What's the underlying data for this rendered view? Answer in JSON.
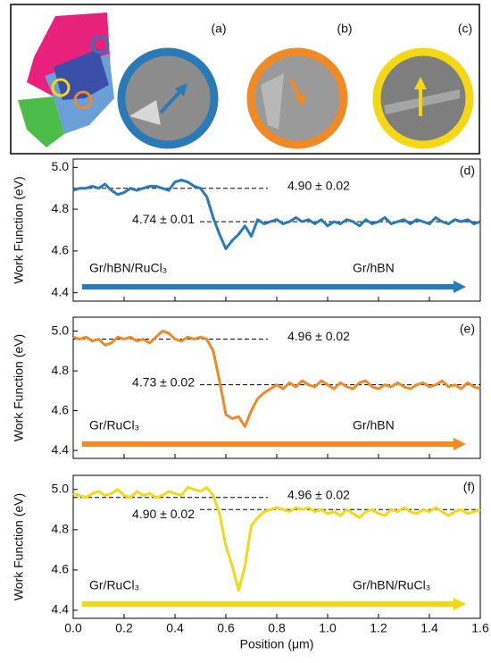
{
  "image_panel": {
    "labels": [
      "(a)",
      "(b)",
      "(c)"
    ]
  },
  "chart_data": [
    {
      "type": "line",
      "tag": "(d)",
      "ylabel": "Work Function (eV)",
      "color": "#2a7ab8",
      "ylim": [
        4.36,
        5.04
      ],
      "yticks": [
        4.4,
        4.6,
        4.8,
        {
          "value": 5,
          "label": "5.0"
        }
      ],
      "xlim": [
        0,
        1.6
      ],
      "xticks": [
        {
          "value": 0,
          "label": "0.0"
        },
        0.2,
        0.4,
        0.6,
        0.8,
        {
          "value": 1,
          "label": "1.0"
        },
        1.2,
        1.4,
        1.6
      ],
      "annotations": [
        {
          "text": "4.90 ± 0.02",
          "value": 4.9
        },
        {
          "text": "4.74 ± 0.01",
          "value": 4.74
        }
      ],
      "regions": [
        "Gr/hBN/RuCl₃",
        "Gr/hBN"
      ],
      "x": [
        0,
        0.025,
        0.05,
        0.075,
        0.1,
        0.125,
        0.15,
        0.175,
        0.2,
        0.225,
        0.25,
        0.275,
        0.3,
        0.325,
        0.35,
        0.375,
        0.4,
        0.425,
        0.45,
        0.475,
        0.5,
        0.525,
        0.55,
        0.575,
        0.6,
        0.625,
        0.65,
        0.675,
        0.7,
        0.725,
        0.75,
        0.775,
        0.8,
        0.825,
        0.85,
        0.875,
        0.9,
        0.925,
        0.95,
        0.975,
        1,
        1.025,
        1.05,
        1.075,
        1.1,
        1.125,
        1.15,
        1.175,
        1.2,
        1.225,
        1.25,
        1.275,
        1.3,
        1.325,
        1.35,
        1.375,
        1.4,
        1.425,
        1.45,
        1.475,
        1.5,
        1.525,
        1.55,
        1.575,
        1.6
      ],
      "values": [
        4.89,
        4.9,
        4.9,
        4.91,
        4.9,
        4.92,
        4.89,
        4.87,
        4.88,
        4.9,
        4.89,
        4.9,
        4.91,
        4.91,
        4.9,
        4.89,
        4.93,
        4.94,
        4.93,
        4.91,
        4.9,
        4.86,
        4.76,
        4.68,
        4.61,
        4.65,
        4.68,
        4.72,
        4.67,
        4.75,
        4.73,
        4.74,
        4.75,
        4.73,
        4.74,
        4.76,
        4.74,
        4.75,
        4.73,
        4.75,
        4.72,
        4.74,
        4.73,
        4.75,
        4.74,
        4.72,
        4.75,
        4.73,
        4.74,
        4.76,
        4.73,
        4.74,
        4.75,
        4.73,
        4.75,
        4.74,
        4.73,
        4.76,
        4.74,
        4.73,
        4.75,
        4.74,
        4.75,
        4.73,
        4.74
      ]
    },
    {
      "type": "line",
      "tag": "(e)",
      "ylabel": "Work Function (eV)",
      "color": "#f08a24",
      "ylim": [
        4.36,
        5.07
      ],
      "yticks": [
        4.4,
        4.6,
        4.8,
        {
          "value": 5,
          "label": "5.0"
        }
      ],
      "xlim": [
        0,
        1.6
      ],
      "xticks": [
        {
          "value": 0,
          "label": "0.0"
        },
        0.2,
        0.4,
        0.6,
        0.8,
        {
          "value": 1,
          "label": "1.0"
        },
        1.2,
        1.4,
        1.6
      ],
      "annotations": [
        {
          "text": "4.96 ± 0.02",
          "value": 4.96
        },
        {
          "text": "4.73 ± 0.02",
          "value": 4.73
        }
      ],
      "regions": [
        "Gr/RuCl₃",
        "Gr/hBN"
      ],
      "x": [
        0,
        0.025,
        0.05,
        0.075,
        0.1,
        0.125,
        0.15,
        0.175,
        0.2,
        0.225,
        0.25,
        0.275,
        0.3,
        0.325,
        0.35,
        0.375,
        0.4,
        0.425,
        0.45,
        0.475,
        0.5,
        0.525,
        0.55,
        0.575,
        0.6,
        0.625,
        0.65,
        0.675,
        0.7,
        0.725,
        0.75,
        0.775,
        0.8,
        0.825,
        0.85,
        0.875,
        0.9,
        0.925,
        0.95,
        0.975,
        1,
        1.025,
        1.05,
        1.075,
        1.1,
        1.125,
        1.15,
        1.175,
        1.2,
        1.225,
        1.25,
        1.275,
        1.3,
        1.325,
        1.35,
        1.375,
        1.4,
        1.425,
        1.45,
        1.475,
        1.5,
        1.525,
        1.55,
        1.575,
        1.6
      ],
      "values": [
        4.97,
        4.96,
        4.97,
        4.95,
        4.96,
        4.93,
        4.94,
        4.97,
        4.96,
        4.97,
        4.95,
        4.96,
        4.94,
        4.97,
        5.0,
        4.99,
        4.96,
        4.95,
        4.97,
        4.96,
        4.97,
        4.96,
        4.9,
        4.75,
        4.58,
        4.56,
        4.57,
        4.52,
        4.6,
        4.66,
        4.69,
        4.71,
        4.73,
        4.71,
        4.74,
        4.72,
        4.75,
        4.73,
        4.72,
        4.75,
        4.73,
        4.71,
        4.74,
        4.72,
        4.71,
        4.74,
        4.75,
        4.72,
        4.71,
        4.73,
        4.72,
        4.74,
        4.72,
        4.71,
        4.73,
        4.74,
        4.72,
        4.73,
        4.75,
        4.72,
        4.73,
        4.71,
        4.74,
        4.72,
        4.71
      ]
    },
    {
      "type": "line",
      "tag": "(f)",
      "ylabel": "Work Function (eV)",
      "color": "#f5d815",
      "ylim": [
        4.36,
        5.07
      ],
      "yticks": [
        4.4,
        4.6,
        4.8,
        {
          "value": 5,
          "label": "5.0"
        }
      ],
      "xlim": [
        0,
        1.6
      ],
      "xticks": [
        {
          "value": 0,
          "label": "0.0"
        },
        0.2,
        0.4,
        0.6,
        0.8,
        {
          "value": 1,
          "label": "1.0"
        },
        1.2,
        1.4,
        1.6
      ],
      "xlabel": "Position (μm)",
      "annotations": [
        {
          "text": "4.96 ± 0.02",
          "value": 4.96
        },
        {
          "text": "4.90 ± 0.02",
          "value": 4.9
        }
      ],
      "regions": [
        "Gr/RuCl₃",
        "Gr/hBN/RuCl₃"
      ],
      "x": [
        0,
        0.025,
        0.05,
        0.075,
        0.1,
        0.125,
        0.15,
        0.175,
        0.2,
        0.225,
        0.25,
        0.275,
        0.3,
        0.325,
        0.35,
        0.375,
        0.4,
        0.425,
        0.45,
        0.475,
        0.5,
        0.525,
        0.55,
        0.575,
        0.6,
        0.625,
        0.65,
        0.675,
        0.7,
        0.725,
        0.75,
        0.775,
        0.8,
        0.825,
        0.85,
        0.875,
        0.9,
        0.925,
        0.95,
        0.975,
        1,
        1.025,
        1.05,
        1.075,
        1.1,
        1.125,
        1.15,
        1.175,
        1.2,
        1.225,
        1.25,
        1.275,
        1.3,
        1.325,
        1.35,
        1.375,
        1.4,
        1.425,
        1.45,
        1.475,
        1.5,
        1.525,
        1.55,
        1.575,
        1.6
      ],
      "values": [
        4.98,
        4.97,
        4.96,
        4.98,
        4.99,
        4.97,
        4.98,
        5.0,
        4.97,
        4.96,
        4.99,
        4.97,
        4.98,
        4.96,
        4.97,
        4.99,
        4.98,
        4.97,
        5.01,
        5.0,
        4.99,
        5.01,
        4.97,
        4.88,
        4.72,
        4.62,
        4.5,
        4.62,
        4.82,
        4.86,
        4.89,
        4.9,
        4.91,
        4.9,
        4.89,
        4.91,
        4.9,
        4.91,
        4.89,
        4.9,
        4.88,
        4.89,
        4.87,
        4.9,
        4.88,
        4.86,
        4.89,
        4.9,
        4.88,
        4.87,
        4.9,
        4.89,
        4.91,
        4.89,
        4.88,
        4.9,
        4.89,
        4.91,
        4.89,
        4.87,
        4.89,
        4.9,
        4.88,
        4.89,
        4.9
      ]
    }
  ]
}
